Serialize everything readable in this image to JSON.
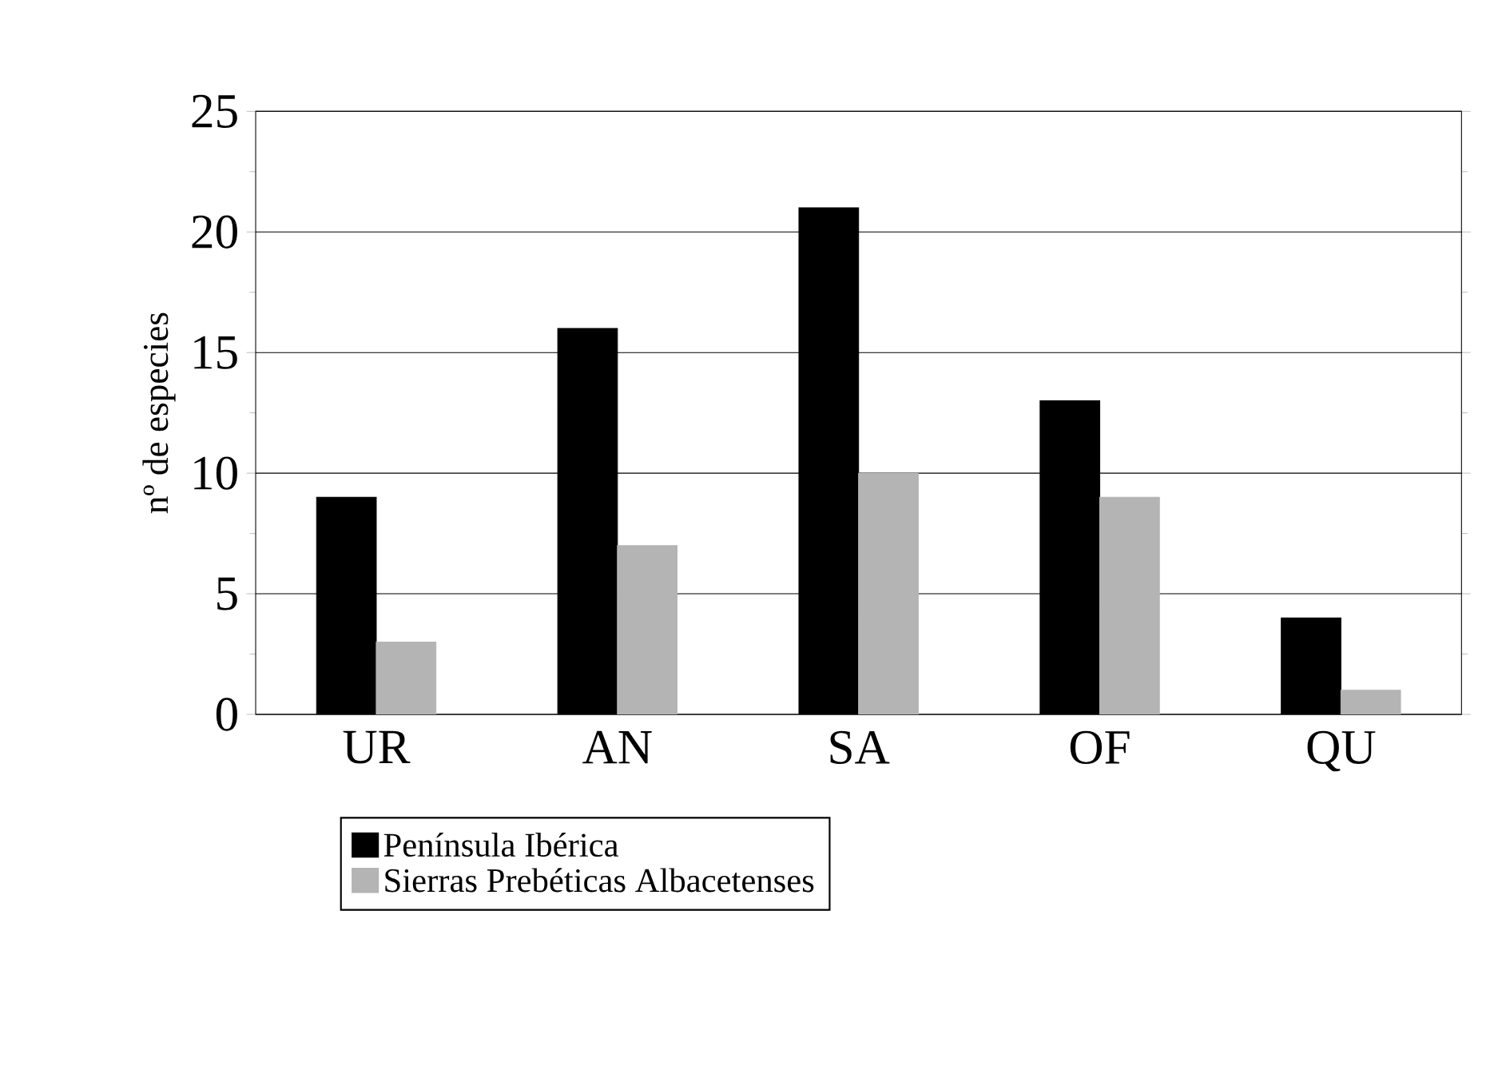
{
  "chart_data": {
    "type": "bar",
    "ylabel": "nº de especies",
    "categories": [
      "UR",
      "AN",
      "SA",
      "OF",
      "QU"
    ],
    "series": [
      {
        "name": "Península Ibérica",
        "color": "#000000",
        "values": [
          9,
          16,
          21,
          13,
          4
        ]
      },
      {
        "name": "Sierras Prebéticas Albacetenses",
        "color": "#b4b4b4",
        "values": [
          3,
          7,
          10,
          9,
          1
        ]
      }
    ],
    "ylim": [
      0,
      25
    ],
    "yticks": [
      0,
      5,
      10,
      15,
      20,
      25
    ],
    "grid": "y",
    "legend": "bottom"
  }
}
